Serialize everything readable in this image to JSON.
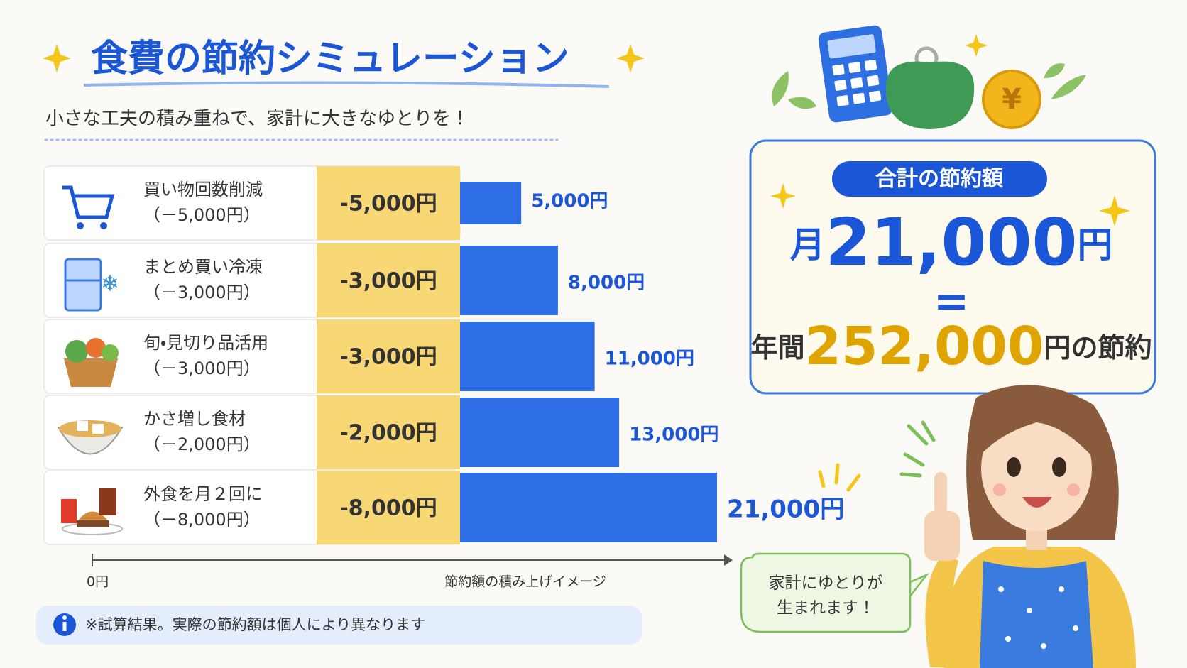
{
  "chart_data": {
    "type": "bar",
    "title": "食費の節約シミュレーション",
    "subtitle": "小さな工夫の積み重ねで、家計に大きなゆとりを！",
    "categories": [
      "買い物回数削減",
      "まとめ買い冷凍",
      "旬・見切り品活用",
      "かさ増し食材",
      "外食を月２回に"
    ],
    "category_notes": [
      "（－5,000円）",
      "（－3,000円）",
      "（－3,000円）",
      "（－2,000円）",
      "（－8,000円）"
    ],
    "savings": [
      "-5,000円",
      "-3,000円",
      "-3,000円",
      "-2,000円",
      "-8,000円"
    ],
    "values": [
      5000,
      8000,
      11000,
      13000,
      21000
    ],
    "value_labels": [
      "5,000円",
      "8,000円",
      "11,000円",
      "13,000円",
      "21,000円"
    ],
    "color": "#2f6fe6",
    "xlim": [
      0,
      21000
    ],
    "x_start_label": "0円",
    "x_label": "節約額の積み上げイメージ",
    "note": "※試算結果。実際の節約額は個人により異なります"
  },
  "summary": {
    "badge": "合計の節約額",
    "month_prefix": "月",
    "monthly_total": "21,000",
    "unit": "円",
    "equals": "=",
    "year_prefix": "年間",
    "yearly_total": "252,000",
    "year_suffix": "円の節約"
  },
  "speech": {
    "line1": "家計にゆとりが",
    "line2": "生まれます！"
  }
}
